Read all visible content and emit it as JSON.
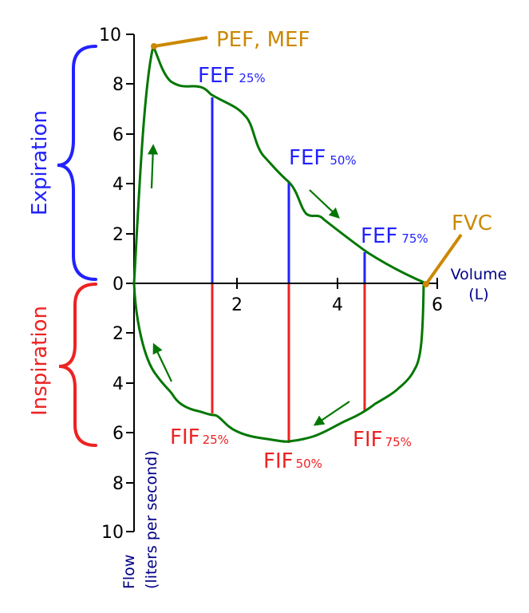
{
  "colors": {
    "curve": "#007700",
    "expiration": "#2222ff",
    "inspiration": "#ee2222",
    "annotation": "#cc8800",
    "axis_label": "#000088",
    "axis": "#000000"
  },
  "y_axis": {
    "expiration_ticks": [
      "10",
      "8",
      "6",
      "4",
      "2",
      "0"
    ],
    "inspiration_ticks": [
      "2",
      "4",
      "6",
      "8",
      "10"
    ],
    "label_line1": "Flow",
    "label_line2": "(liters per second)"
  },
  "x_axis": {
    "ticks": [
      "2",
      "4",
      "6"
    ],
    "label_line1": "Volume",
    "label_line2": "(L)"
  },
  "phases": {
    "expiration": "Expiration",
    "inspiration": "Inspiration"
  },
  "annotations": {
    "peak": "PEF, MEF",
    "fvc": "FVC"
  },
  "markers": {
    "fef25": {
      "main": "FEF",
      "sub": "25%"
    },
    "fef50": {
      "main": "FEF",
      "sub": "50%"
    },
    "fef75": {
      "main": "FEF",
      "sub": "75%"
    },
    "fif25": {
      "main": "FIF",
      "sub": "25%"
    },
    "fif50": {
      "main": "FIF",
      "sub": "50%"
    },
    "fif75": {
      "main": "FIF",
      "sub": "75%"
    }
  }
}
